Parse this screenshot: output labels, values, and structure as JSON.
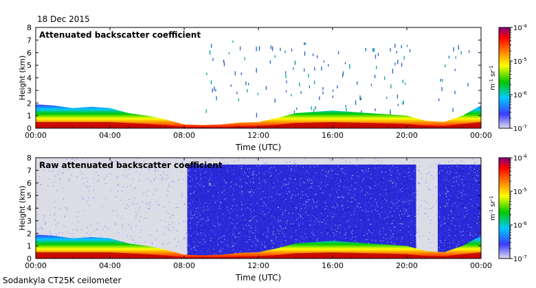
{
  "date": "18 Dec 2015",
  "footer": "Sodankyla CT25K ceilometer",
  "colorbar": {
    "stops": [
      "#dcdcf0",
      "#3c3cff",
      "#00c8ff",
      "#00c800",
      "#ffff00",
      "#ff8000",
      "#ff0000",
      "#800080"
    ],
    "tick_labels": [
      "10-4",
      "10-5",
      "10-6",
      "10-7"
    ],
    "unit_label": "m-1 sr-1"
  },
  "chart_data": [
    {
      "type": "heatmap",
      "title": "Attenuated backscatter coefficient",
      "xlabel": "Time (UTC)",
      "ylabel": "Height (km)",
      "xlim": [
        "00:00",
        "24:00"
      ],
      "x_tick_labels": [
        "00:00",
        "04:00",
        "08:00",
        "12:00",
        "16:00",
        "20:00",
        "00:00"
      ],
      "ylim": [
        0,
        8
      ],
      "y_tick_labels": [
        "0",
        "1",
        "2",
        "3",
        "4",
        "5",
        "6",
        "7",
        "8"
      ],
      "colorscale": {
        "min": "1e-7",
        "max": "1e-4",
        "log": true,
        "unit": "m-1 sr-1"
      },
      "noise_filtered": true,
      "boundary_layer_top_km": [
        [
          0,
          1.9
        ],
        [
          1,
          1.8
        ],
        [
          2,
          1.6
        ],
        [
          3,
          1.7
        ],
        [
          4,
          1.6
        ],
        [
          5,
          1.2
        ],
        [
          6,
          1.0
        ],
        [
          7,
          0.7
        ],
        [
          8,
          0.3
        ],
        [
          9,
          0.25
        ],
        [
          10,
          0.3
        ],
        [
          11,
          0.45
        ],
        [
          12,
          0.5
        ],
        [
          13,
          0.8
        ],
        [
          14,
          1.2
        ],
        [
          15,
          1.3
        ],
        [
          16,
          1.4
        ],
        [
          17,
          1.3
        ],
        [
          18,
          1.2
        ],
        [
          19,
          1.1
        ],
        [
          20,
          1.0
        ],
        [
          21,
          0.6
        ],
        [
          22,
          0.5
        ],
        [
          23,
          1.0
        ],
        [
          24,
          1.8
        ]
      ]
    },
    {
      "type": "heatmap",
      "title": "Raw attenuated backscatter coefficient",
      "xlabel": "Time (UTC)",
      "ylabel": "Height (km)",
      "xlim": [
        "00:00",
        "24:00"
      ],
      "x_tick_labels": [
        "00:00",
        "04:00",
        "08:00",
        "12:00",
        "16:00",
        "20:00",
        "00:00"
      ],
      "ylim": [
        0,
        8
      ],
      "y_tick_labels": [
        "0",
        "1",
        "2",
        "3",
        "4",
        "5",
        "6",
        "7",
        "8"
      ],
      "colorscale": {
        "min": "1e-7",
        "max": "1e-4",
        "log": true,
        "unit": "m-1 sr-1"
      },
      "noise_filtered": false,
      "high_noise_periods_utc": [
        [
          "08:10",
          "20:30"
        ],
        [
          "21:40",
          "24:00"
        ]
      ],
      "boundary_layer_top_km": [
        [
          0,
          1.9
        ],
        [
          1,
          1.8
        ],
        [
          2,
          1.6
        ],
        [
          3,
          1.7
        ],
        [
          4,
          1.6
        ],
        [
          5,
          1.2
        ],
        [
          6,
          1.0
        ],
        [
          7,
          0.7
        ],
        [
          8,
          0.3
        ],
        [
          9,
          0.25
        ],
        [
          10,
          0.3
        ],
        [
          11,
          0.45
        ],
        [
          12,
          0.5
        ],
        [
          13,
          0.8
        ],
        [
          14,
          1.2
        ],
        [
          15,
          1.3
        ],
        [
          16,
          1.4
        ],
        [
          17,
          1.3
        ],
        [
          18,
          1.2
        ],
        [
          19,
          1.1
        ],
        [
          20,
          1.0
        ],
        [
          21,
          0.6
        ],
        [
          22,
          0.5
        ],
        [
          23,
          1.0
        ],
        [
          24,
          1.8
        ]
      ]
    }
  ]
}
